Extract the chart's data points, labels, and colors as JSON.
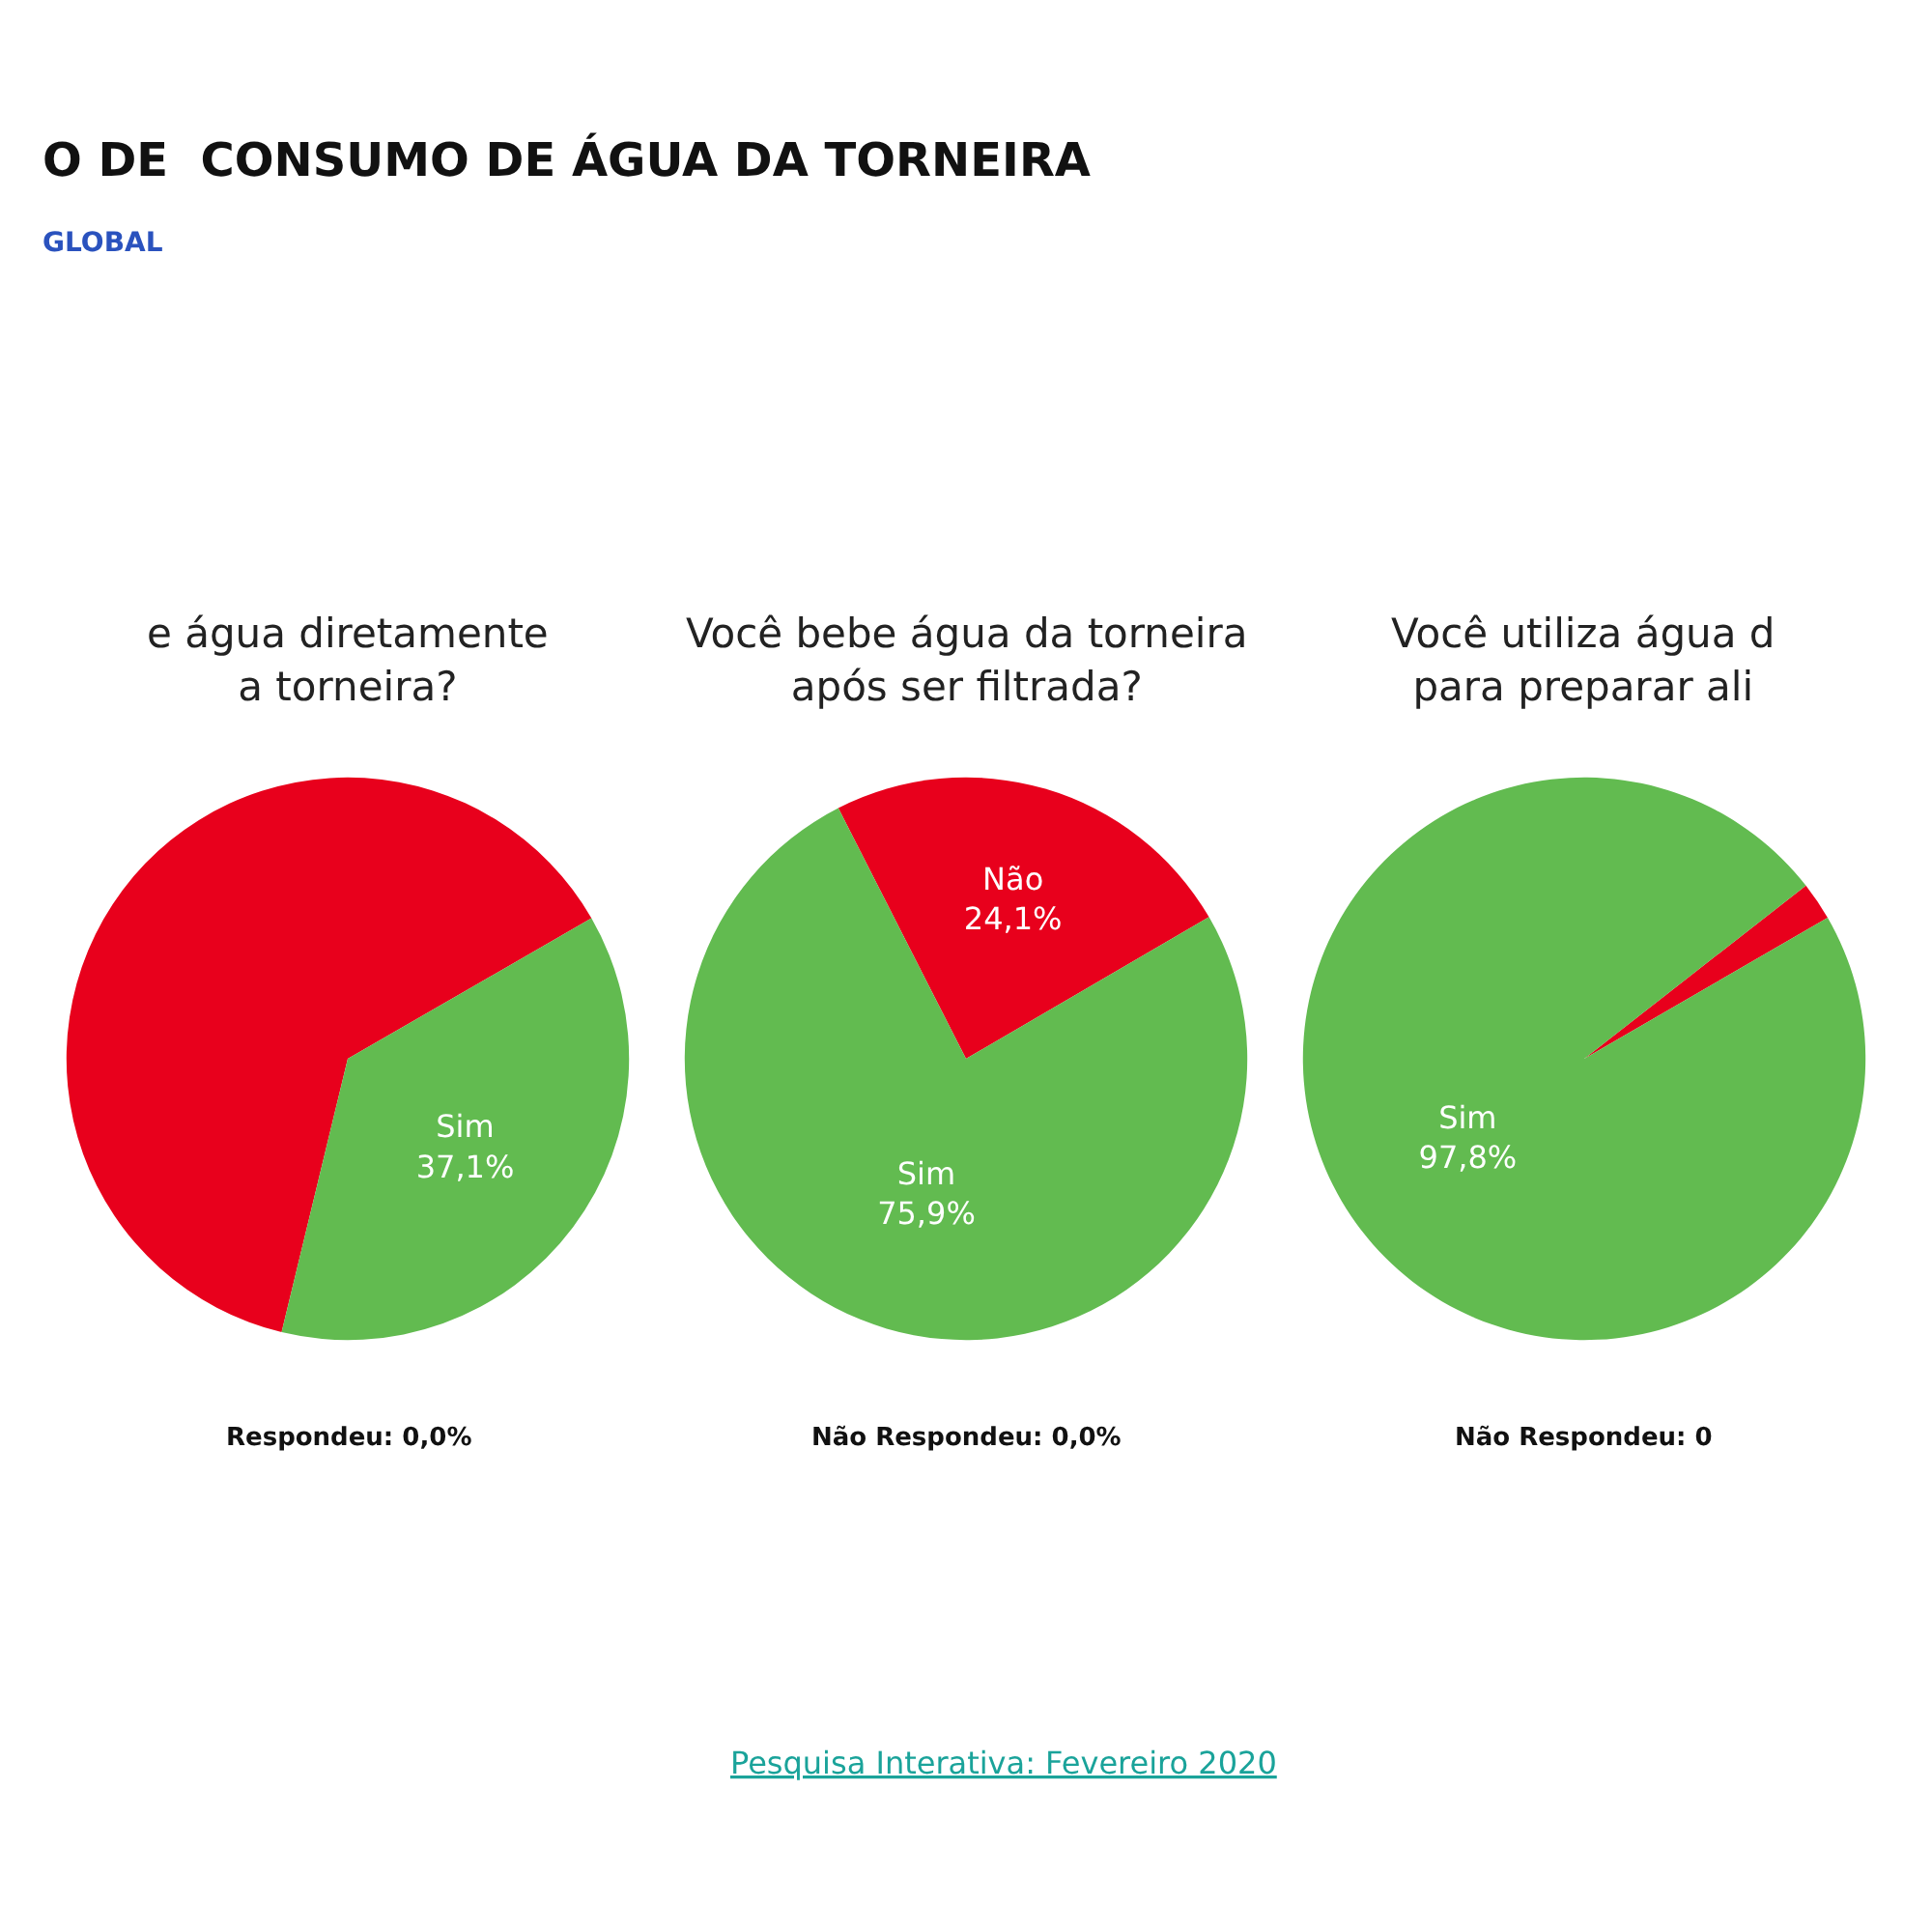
{
  "chart_data": [
    {
      "type": "other",
      "title": "O DE  CONSUMO DE ÁGUA DA TORNEIRA",
      "subtitle": "GLOBAL",
      "annotations": [
        "Pesquisa Interativa: Fevereiro 2020"
      ]
    },
    {
      "type": "pie",
      "title": "e água diretamente\na torneira?",
      "categories": [
        null,
        "Sim"
      ],
      "values": [
        62.9,
        37.1
      ],
      "colors": [
        "#e8001c",
        "#62bb50"
      ],
      "value_labels": [
        null,
        "37,1%"
      ],
      "annotations": [
        "Respondeu: 0,0%"
      ]
    },
    {
      "type": "pie",
      "title": "Você bebe água da torneira\napós ser filtrada?",
      "categories": [
        "Não",
        "Sim"
      ],
      "values": [
        24.1,
        75.9
      ],
      "colors": [
        "#e8001c",
        "#62bb50"
      ],
      "value_labels": [
        "24,1%",
        "75,9%"
      ],
      "annotations": [
        "Não Respondeu: 0,0%"
      ]
    },
    {
      "type": "pie",
      "title": "Você utiliza água d\npara preparar ali",
      "categories": [
        null,
        "Sim"
      ],
      "values": [
        2.2,
        97.8
      ],
      "colors": [
        "#e8001c",
        "#62bb50"
      ],
      "value_labels": [
        null,
        "97,8%"
      ],
      "annotations": [
        "Não Respondeu: 0"
      ]
    }
  ]
}
